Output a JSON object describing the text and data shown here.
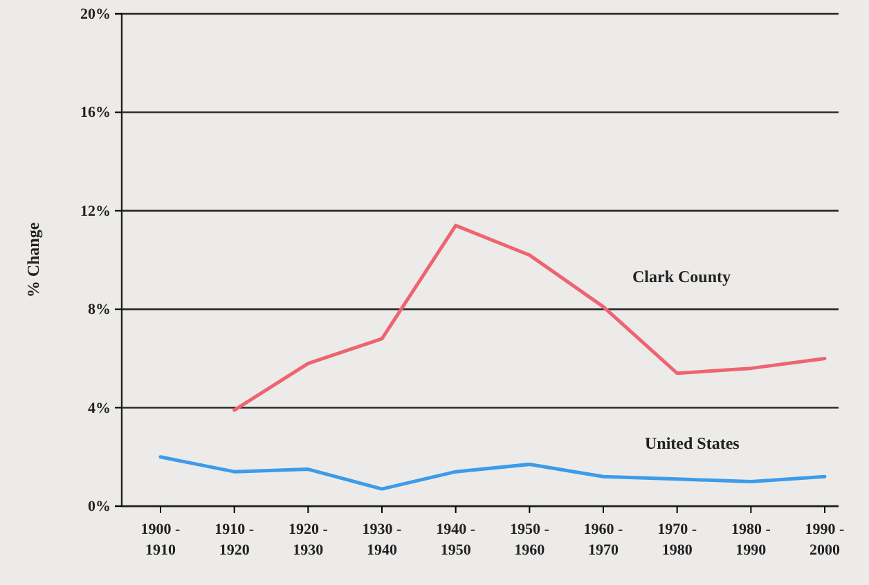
{
  "chart_data": {
    "type": "line",
    "ylabel": "% Change",
    "categories": [
      "1900 - 1910",
      "1910 - 1920",
      "1920 - 1930",
      "1930 - 1940",
      "1940 - 1950",
      "1950 - 1960",
      "1960 - 1970",
      "1970 - 1980",
      "1980 - 1990",
      "1990 - 2000"
    ],
    "series": [
      {
        "name": "Clark County",
        "color": "#ee6470",
        "values": [
          null,
          3.9,
          5.8,
          6.8,
          11.4,
          10.2,
          8.1,
          5.4,
          5.6,
          6.0
        ]
      },
      {
        "name": "United States",
        "color": "#3d9be9",
        "values": [
          2.0,
          1.4,
          1.5,
          0.7,
          1.4,
          1.7,
          1.2,
          1.1,
          1.0,
          1.2
        ]
      }
    ],
    "ylim": [
      0,
      20
    ],
    "yticks": [
      {
        "value": 0,
        "label": "0%"
      },
      {
        "value": 4,
        "label": "4%"
      },
      {
        "value": 8,
        "label": "8%"
      },
      {
        "value": 12,
        "label": "12%"
      },
      {
        "value": 16,
        "label": "16%"
      },
      {
        "value": 20,
        "label": "20%"
      }
    ],
    "grid": "y",
    "marker": "none",
    "line_style": "solid",
    "legend": false
  }
}
